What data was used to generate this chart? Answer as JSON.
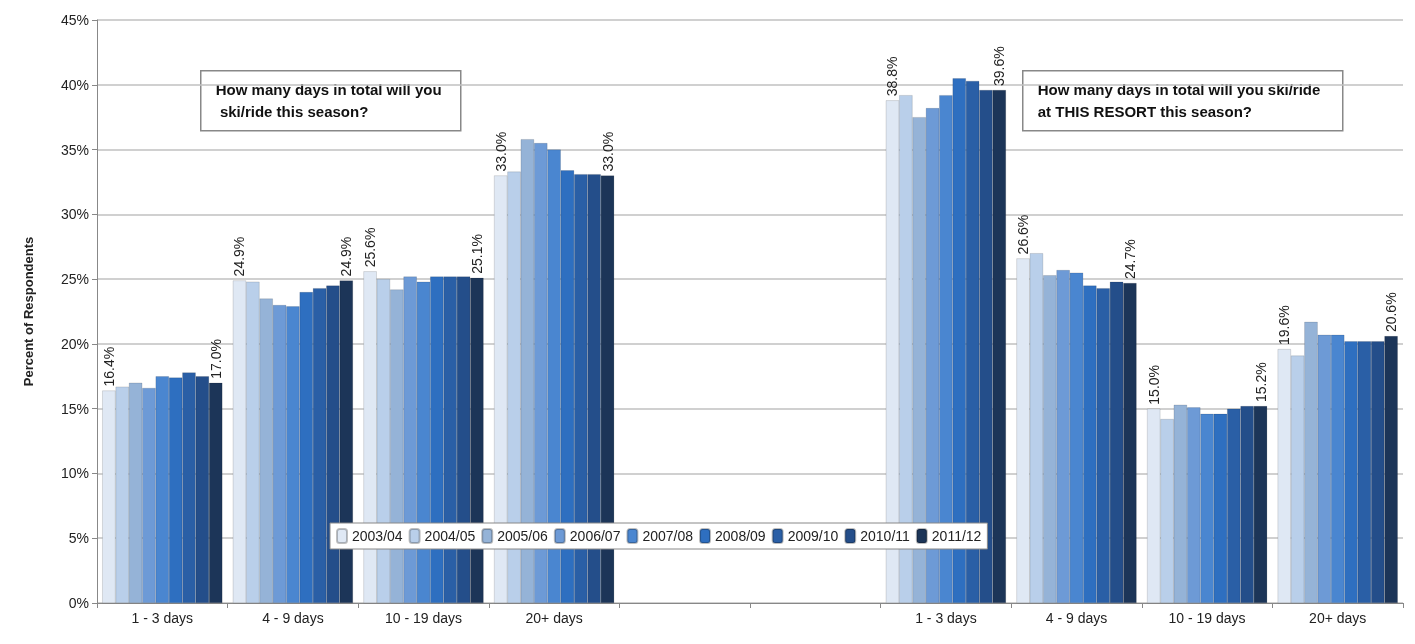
{
  "chart_data": {
    "type": "bar",
    "ylabel": "Percent of Respondents",
    "categories": [
      "1 - 3 days",
      "4 - 9 days",
      "10 - 19 days",
      "20+ days",
      null,
      null,
      "1 - 3 days",
      "4 - 9 days",
      "10 - 19 days",
      "20+ days"
    ],
    "ylim": [
      0,
      45
    ],
    "yticks": [
      {
        "value": 0,
        "label": "0%"
      },
      {
        "value": 5,
        "label": "5%"
      },
      {
        "value": 10,
        "label": "10%"
      },
      {
        "value": 15,
        "label": "15%"
      },
      {
        "value": 20,
        "label": "20%"
      },
      {
        "value": 25,
        "label": "25%"
      },
      {
        "value": 30,
        "label": "30%"
      },
      {
        "value": 35,
        "label": "35%"
      },
      {
        "value": 40,
        "label": "40%"
      },
      {
        "value": 45,
        "label": "45%"
      }
    ],
    "grid": "y",
    "legend": "bottom",
    "annotations": [
      "How many days in total will you ski/ride this season?",
      "How many days in total will you ski/ride at THIS RESORT this season?"
    ],
    "series": [
      {
        "name": "2003/04",
        "color": "#dfe8f4",
        "values": [
          16.4,
          24.9,
          25.6,
          33.0,
          null,
          null,
          38.8,
          26.6,
          15.0,
          19.6
        ],
        "value_labels": [
          "16.4%",
          "24.9%",
          "25.6%",
          "33.0%",
          null,
          null,
          "38.8%",
          "26.6%",
          "15.0%",
          "19.6%"
        ]
      },
      {
        "name": "2004/05",
        "color": "#b9cfea",
        "values": [
          16.7,
          24.8,
          25.0,
          33.3,
          null,
          null,
          39.2,
          27.0,
          14.2,
          19.1
        ]
      },
      {
        "name": "2005/06",
        "color": "#95b3d7",
        "values": [
          17.0,
          23.5,
          24.2,
          35.8,
          null,
          null,
          37.5,
          25.3,
          15.3,
          21.7
        ]
      },
      {
        "name": "2006/07",
        "color": "#6d9ad6",
        "values": [
          16.6,
          23.0,
          25.2,
          35.5,
          null,
          null,
          38.2,
          25.7,
          15.1,
          20.7
        ]
      },
      {
        "name": "2007/08",
        "color": "#4a86d0",
        "values": [
          17.5,
          22.9,
          24.8,
          35.0,
          null,
          null,
          39.2,
          25.5,
          14.6,
          20.7
        ]
      },
      {
        "name": "2008/09",
        "color": "#2e6fc0",
        "values": [
          17.4,
          24.0,
          25.2,
          33.4,
          null,
          null,
          40.5,
          24.5,
          14.6,
          20.2
        ]
      },
      {
        "name": "2009/10",
        "color": "#2a5fa6",
        "values": [
          17.8,
          24.3,
          25.2,
          33.1,
          null,
          null,
          40.3,
          24.3,
          15.0,
          20.2
        ]
      },
      {
        "name": "2010/11",
        "color": "#244e8a",
        "values": [
          17.5,
          24.5,
          25.2,
          33.1,
          null,
          null,
          39.6,
          24.8,
          15.2,
          20.2
        ]
      },
      {
        "name": "2011/12",
        "color": "#1c3558",
        "values": [
          17.0,
          24.9,
          25.1,
          33.0,
          null,
          null,
          39.6,
          24.7,
          15.2,
          20.6
        ],
        "value_labels": [
          "17.0%",
          "24.9%",
          "25.1%",
          "33.0%",
          null,
          null,
          "39.6%",
          "24.7%",
          "15.2%",
          "20.6%"
        ]
      }
    ]
  }
}
